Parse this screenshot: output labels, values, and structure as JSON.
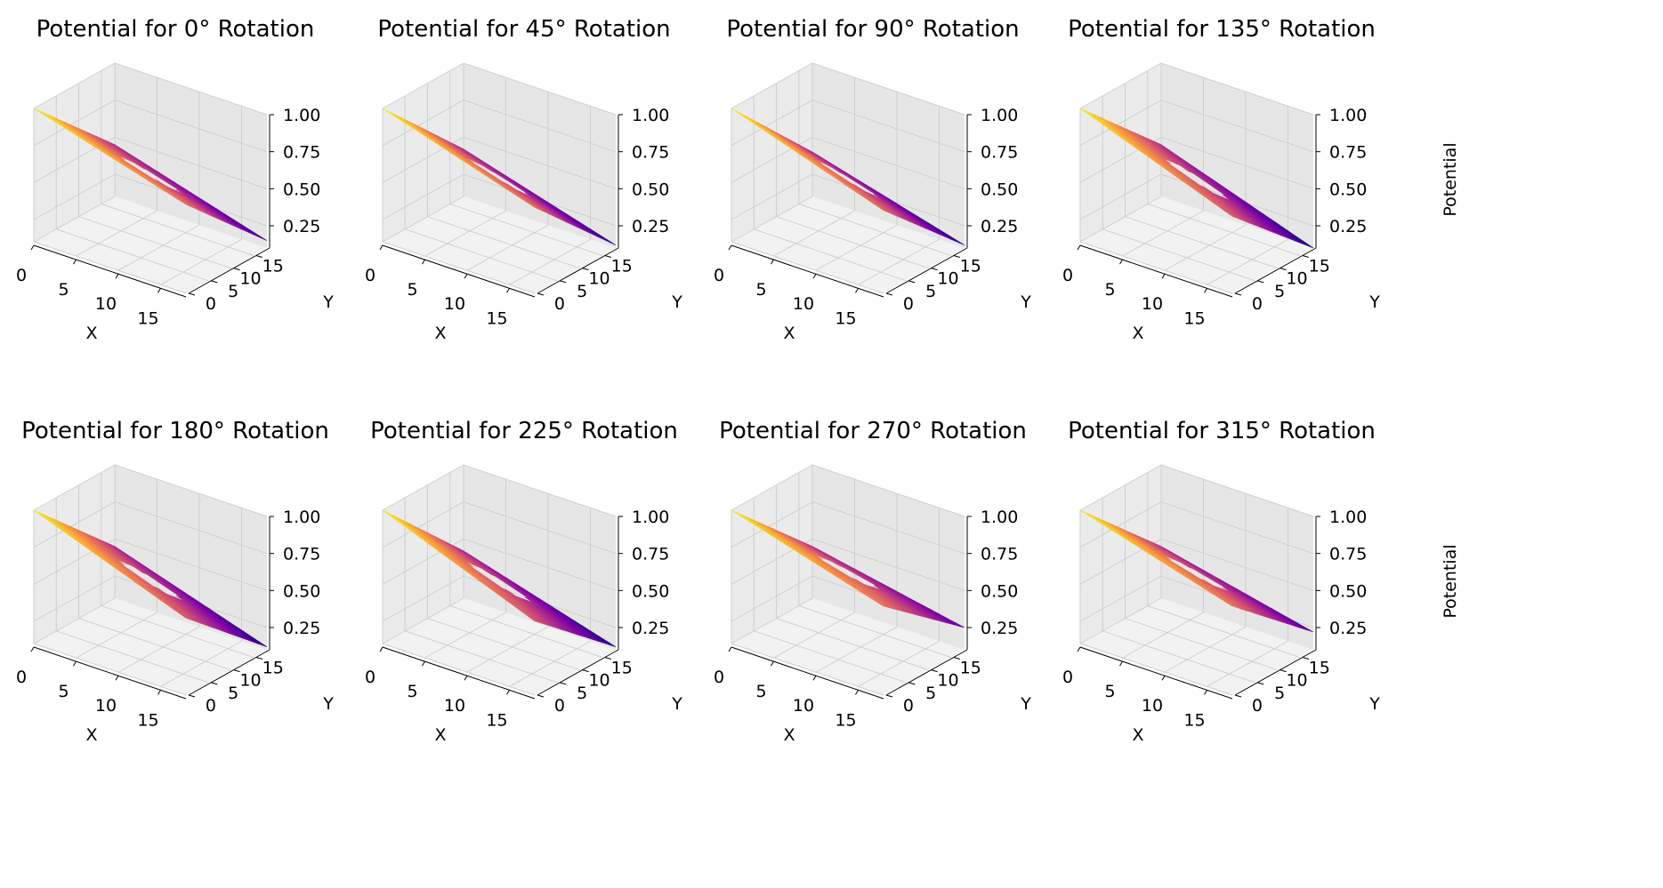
{
  "chart_data": [
    {
      "type": "surface3d",
      "title": "Potential for 0° Rotation",
      "xlabel": "X",
      "ylabel": "Y",
      "zlabel": "Potential",
      "x_ticks": [
        "0",
        "5",
        "10",
        "15"
      ],
      "y_ticks": [
        "0",
        "5",
        "10",
        "15"
      ],
      "z_ticks": [
        "0.25",
        "0.50",
        "0.75",
        "1.00"
      ],
      "xlim": [
        0,
        18
      ],
      "ylim": [
        0,
        18
      ],
      "zlim": [
        0.1,
        1.0
      ],
      "rotation_deg": 0,
      "colormap": "plasma",
      "surface_corners_z": {
        "x0_y0": 1.0,
        "x18_y0": 0.7,
        "x0_y18": 0.45,
        "x18_y18": 0.15
      },
      "hole_center": [
        9,
        9
      ],
      "grid": true
    },
    {
      "type": "surface3d",
      "title": "Potential for 45° Rotation",
      "xlabel": "X",
      "ylabel": "Y",
      "zlabel": "Potential",
      "x_ticks": [
        "0",
        "5",
        "10",
        "15"
      ],
      "y_ticks": [
        "0",
        "5",
        "10",
        "15"
      ],
      "z_ticks": [
        "0.25",
        "0.50",
        "0.75",
        "1.00"
      ],
      "xlim": [
        0,
        18
      ],
      "ylim": [
        0,
        18
      ],
      "zlim": [
        0.1,
        1.0
      ],
      "rotation_deg": 45,
      "colormap": "plasma",
      "surface_corners_z": {
        "x0_y0": 1.0,
        "x18_y0": 0.68,
        "x0_y18": 0.42,
        "x18_y18": 0.12
      },
      "hole_center": [
        9,
        9
      ],
      "grid": true
    },
    {
      "type": "surface3d",
      "title": "Potential for 90° Rotation",
      "xlabel": "X",
      "ylabel": "Y",
      "zlabel": "Potential",
      "x_ticks": [
        "0",
        "5",
        "10",
        "15"
      ],
      "y_ticks": [
        "0",
        "5",
        "10",
        "15"
      ],
      "z_ticks": [
        "0.25",
        "0.50",
        "0.75",
        "1.00"
      ],
      "xlim": [
        0,
        18
      ],
      "ylim": [
        0,
        18
      ],
      "zlim": [
        0.1,
        1.0
      ],
      "rotation_deg": 90,
      "colormap": "plasma",
      "surface_corners_z": {
        "x0_y0": 1.0,
        "x18_y0": 0.66,
        "x0_y18": 0.4,
        "x18_y18": 0.12
      },
      "hole_center": [
        9,
        9
      ],
      "grid": true
    },
    {
      "type": "surface3d",
      "title": "Potential for 135° Rotation",
      "xlabel": "X",
      "ylabel": "Y",
      "zlabel": "Potential",
      "x_ticks": [
        "0",
        "5",
        "10",
        "15"
      ],
      "y_ticks": [
        "0",
        "5",
        "10",
        "15"
      ],
      "z_ticks": [
        "0.25",
        "0.50",
        "0.75",
        "1.00"
      ],
      "xlim": [
        0,
        18
      ],
      "ylim": [
        0,
        18
      ],
      "zlim": [
        0.1,
        1.0
      ],
      "rotation_deg": 135,
      "colormap": "plasma",
      "surface_corners_z": {
        "x0_y0": 1.0,
        "x18_y0": 0.62,
        "x0_y18": 0.45,
        "x18_y18": 0.1
      },
      "hole_center": [
        9,
        9
      ],
      "grid": true
    },
    {
      "type": "surface3d",
      "title": "Potential for 180° Rotation",
      "xlabel": "X",
      "ylabel": "Y",
      "zlabel": "Potential",
      "x_ticks": [
        "0",
        "5",
        "10",
        "15"
      ],
      "y_ticks": [
        "0",
        "5",
        "10",
        "15"
      ],
      "z_ticks": [
        "0.25",
        "0.50",
        "0.75",
        "1.00"
      ],
      "xlim": [
        0,
        18
      ],
      "ylim": [
        0,
        18
      ],
      "zlim": [
        0.1,
        1.0
      ],
      "rotation_deg": 180,
      "colormap": "plasma",
      "surface_corners_z": {
        "x0_y0": 1.0,
        "x18_y0": 0.62,
        "x0_y18": 0.45,
        "x18_y18": 0.12
      },
      "hole_center": [
        9,
        9
      ],
      "grid": true
    },
    {
      "type": "surface3d",
      "title": "Potential for 225° Rotation",
      "xlabel": "X",
      "ylabel": "Y",
      "zlabel": "Potential",
      "x_ticks": [
        "0",
        "5",
        "10",
        "15"
      ],
      "y_ticks": [
        "0",
        "5",
        "10",
        "15"
      ],
      "z_ticks": [
        "0.25",
        "0.50",
        "0.75",
        "1.00"
      ],
      "xlim": [
        0,
        18
      ],
      "ylim": [
        0,
        18
      ],
      "zlim": [
        0.1,
        1.0
      ],
      "rotation_deg": 225,
      "colormap": "plasma",
      "surface_corners_z": {
        "x0_y0": 1.0,
        "x18_y0": 0.6,
        "x0_y18": 0.42,
        "x18_y18": 0.12
      },
      "hole_center": [
        9,
        9
      ],
      "grid": true
    },
    {
      "type": "surface3d",
      "title": "Potential for 270° Rotation",
      "xlabel": "X",
      "ylabel": "Y",
      "zlabel": "Potential",
      "x_ticks": [
        "0",
        "5",
        "10",
        "15"
      ],
      "y_ticks": [
        "0",
        "5",
        "10",
        "15"
      ],
      "z_ticks": [
        "0.25",
        "0.50",
        "0.75",
        "1.00"
      ],
      "xlim": [
        0,
        18
      ],
      "ylim": [
        0,
        18
      ],
      "zlim": [
        0.1,
        1.0
      ],
      "rotation_deg": 270,
      "colormap": "plasma",
      "surface_corners_z": {
        "x0_y0": 1.0,
        "x18_y0": 0.7,
        "x0_y18": 0.45,
        "x18_y18": 0.25
      },
      "hole_center": [
        9,
        9
      ],
      "grid": true
    },
    {
      "type": "surface3d",
      "title": "Potential for 315° Rotation",
      "xlabel": "X",
      "ylabel": "Y",
      "zlabel": "Potential",
      "x_ticks": [
        "0",
        "5",
        "10",
        "15"
      ],
      "y_ticks": [
        "0",
        "5",
        "10",
        "15"
      ],
      "z_ticks": [
        "0.25",
        "0.50",
        "0.75",
        "1.00"
      ],
      "xlim": [
        0,
        18
      ],
      "ylim": [
        0,
        18
      ],
      "zlim": [
        0.1,
        1.0
      ],
      "rotation_deg": 315,
      "colormap": "plasma",
      "surface_corners_z": {
        "x0_y0": 1.0,
        "x18_y0": 0.7,
        "x0_y18": 0.45,
        "x18_y18": 0.22
      },
      "hole_center": [
        9,
        9
      ],
      "grid": true
    }
  ]
}
